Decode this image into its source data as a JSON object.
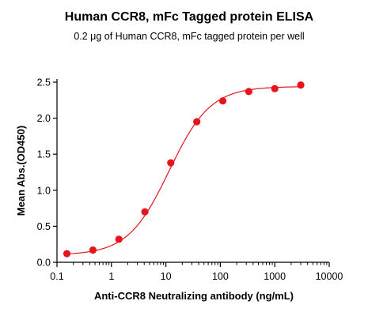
{
  "chart_data": {
    "type": "scatter",
    "title": "Human CCR8, mFc Tagged protein ELISA",
    "subtitle": "0.2 μg of Human CCR8, mFc tagged protein per well",
    "xlabel": "Anti-CCR8 Neutralizing antibody (ng/mL)",
    "ylabel": "Mean Abs.(OD450)",
    "x_scale": "log",
    "xlim": [
      0.1,
      10000
    ],
    "ylim": [
      0,
      2.5
    ],
    "x_ticks": [
      0.1,
      1,
      10,
      100,
      1000,
      10000
    ],
    "x_tick_labels": [
      "0.1",
      "1",
      "10",
      "100",
      "1000",
      "10000"
    ],
    "y_ticks": [
      0,
      0.5,
      1,
      1.5,
      2,
      2.5
    ],
    "y_tick_labels": [
      "0.0",
      "0.5",
      "1.0",
      "1.5",
      "2.0",
      "2.5"
    ],
    "grid": false,
    "legend": "none",
    "point_color": "#e8141c",
    "curve_color": "#e8141c",
    "x": [
      0.152,
      0.457,
      1.37,
      4.12,
      12.3,
      37.0,
      111,
      333,
      1000,
      3000
    ],
    "y": [
      0.12,
      0.17,
      0.32,
      0.7,
      1.38,
      1.95,
      2.24,
      2.37,
      2.41,
      2.46
    ],
    "fit": {
      "model": "4PL",
      "bottom": 0.1,
      "top": 2.44,
      "ec50": 11.5,
      "hill": 1.15
    }
  }
}
